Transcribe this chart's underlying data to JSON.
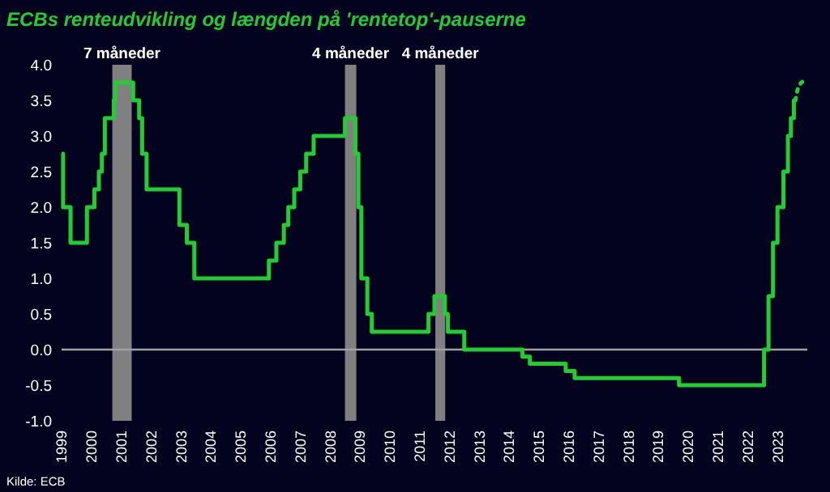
{
  "chart_data": {
    "type": "step",
    "title": "ECBs renteudvikling og længden på 'rentetop'-pauserne",
    "xlim": [
      1999,
      2024
    ],
    "xticks": [
      1999,
      2000,
      2001,
      2002,
      2003,
      2004,
      2005,
      2006,
      2007,
      2008,
      2009,
      2010,
      2011,
      2012,
      2013,
      2014,
      2015,
      2016,
      2017,
      2018,
      2019,
      2020,
      2021,
      2022,
      2023
    ],
    "ylim": [
      -1,
      4
    ],
    "yticks": [
      {
        "value": -1,
        "label": "-1.0"
      },
      {
        "value": -0.5,
        "label": "-0.5"
      },
      {
        "value": 0,
        "label": "0.0"
      },
      {
        "value": 0.5,
        "label": "0.5"
      },
      {
        "value": 1,
        "label": "1.0"
      },
      {
        "value": 1.5,
        "label": "1.5"
      },
      {
        "value": 2,
        "label": "2.0"
      },
      {
        "value": 2.5,
        "label": "2.5"
      },
      {
        "value": 3,
        "label": "3.0"
      },
      {
        "value": 3.5,
        "label": "3.5"
      },
      {
        "value": 4,
        "label": "4.0"
      }
    ],
    "grid": false,
    "series": [
      {
        "color": "#22cc33",
        "line_style": "solid",
        "x": [
          1999,
          1999.05,
          1999.3,
          1999.85,
          2000.1,
          2000.25,
          2000.35,
          2000.45,
          2000.75,
          2000.8,
          2001.4,
          2001.6,
          2001.7,
          2001.85,
          2002.95,
          2003.2,
          2003.45,
          2005.95,
          2006.2,
          2006.45,
          2006.6,
          2006.8,
          2007.0,
          2007.2,
          2007.45,
          2008.5,
          2008.85,
          2008.95,
          2009.05,
          2009.25,
          2009.4,
          2011.3,
          2011.5,
          2011.85,
          2011.95,
          2012.5,
          2014.45,
          2014.7,
          2015.9,
          2016.2,
          2019.7,
          2022.55,
          2022.7,
          2022.85,
          2023.0,
          2023.2,
          2023.35,
          2023.45,
          2023.55,
          2023.6
        ],
        "values": [
          2.75,
          2.0,
          1.5,
          2.0,
          2.25,
          2.5,
          2.75,
          3.25,
          3.5,
          3.75,
          3.5,
          3.25,
          2.75,
          2.25,
          1.75,
          1.5,
          1.0,
          1.25,
          1.5,
          1.75,
          2.0,
          2.25,
          2.5,
          2.75,
          3.0,
          3.25,
          2.75,
          2.0,
          1.0,
          0.5,
          0.25,
          0.5,
          0.75,
          0.5,
          0.25,
          0.0,
          -0.1,
          -0.2,
          -0.3,
          -0.4,
          -0.5,
          0.0,
          0.75,
          1.5,
          2.0,
          2.5,
          3.0,
          3.25,
          3.5,
          3.5
        ]
      },
      {
        "type": "line",
        "color": "#22cc33",
        "line_style": "dotted",
        "x": [
          2023.6,
          2023.65,
          2023.7,
          2023.8,
          2023.9
        ],
        "values": [
          3.5,
          3.6,
          3.7,
          3.75,
          3.78
        ]
      }
    ],
    "ref_lines": [
      {
        "axis": "y",
        "value": 0,
        "color": "#a0a0a0",
        "line_style": "solid"
      }
    ],
    "bands": [
      {
        "axis": "x",
        "from": 2000.7,
        "to": 2001.35,
        "label": "7 måneder",
        "color": "#808080"
      },
      {
        "axis": "x",
        "from": 2008.5,
        "to": 2008.88,
        "label": "4 måneder",
        "color": "#808080"
      },
      {
        "axis": "x",
        "from": 2011.53,
        "to": 2011.86,
        "label": "4 måneder",
        "color": "#808080"
      }
    ],
    "annotations": [
      "Kilde: ECB"
    ]
  }
}
